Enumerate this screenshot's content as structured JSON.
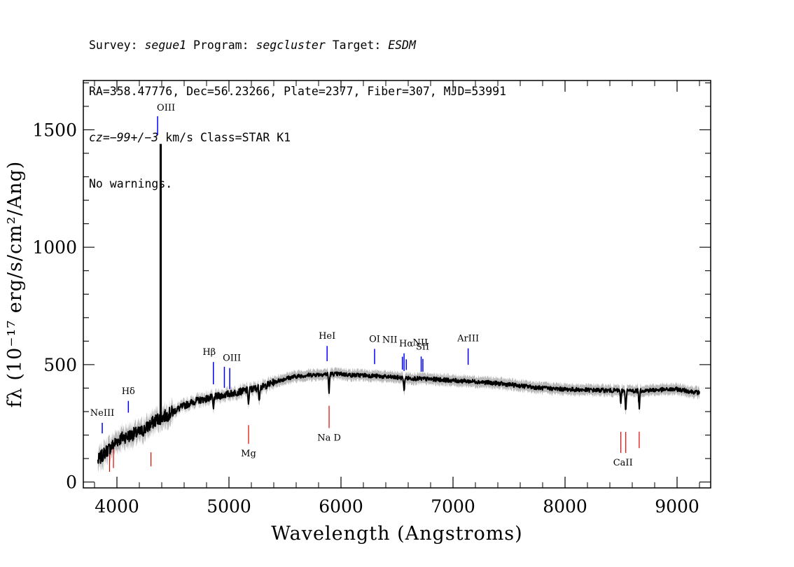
{
  "header": {
    "survey_label": "Survey: ",
    "survey": "segue1",
    "program_label": " Program: ",
    "program": "segcluster",
    "target_label": " Target: ",
    "target": "ESDM",
    "line2": "RA=358.47776, Dec=56.23266, Plate=2377, Fiber=307, MJD=53991",
    "cz_label": "cz",
    "cz_eq": "=",
    "cz_value": "−99+/−3",
    "cz_rest": " km/s Class=STAR K1",
    "line4": "No warnings."
  },
  "chart_data": {
    "type": "line",
    "title": "",
    "xlabel": "Wavelength (Angstroms)",
    "ylabel": "fλ (10⁻¹⁷ erg/s/cm²/Ang)",
    "xlim": [
      3700,
      9300
    ],
    "ylim": [
      -25,
      1710
    ],
    "xticks": [
      4000,
      5000,
      6000,
      7000,
      8000,
      9000
    ],
    "yticks": [
      0,
      500,
      1000,
      1500
    ],
    "xtick_labels": [
      "4000",
      "5000",
      "6000",
      "7000",
      "8000",
      "9000"
    ],
    "ytick_labels": [
      "0",
      "500",
      "1000",
      "1500"
    ],
    "spectrum_knots": {
      "x": [
        3830,
        3900,
        3950,
        4000,
        4050,
        4100,
        4150,
        4200,
        4250,
        4300,
        4350,
        4400,
        4450,
        4500,
        4600,
        4700,
        4800,
        4900,
        5000,
        5100,
        5200,
        5300,
        5400,
        5500,
        5600,
        5700,
        5800,
        5900,
        6000,
        6100,
        6200,
        6300,
        6400,
        6500,
        6600,
        6700,
        6800,
        6900,
        7000,
        7200,
        7400,
        7600,
        7800,
        8000,
        8200,
        8400,
        8600,
        8800,
        9000,
        9200
      ],
      "y": [
        90,
        130,
        150,
        175,
        190,
        195,
        205,
        210,
        225,
        245,
        265,
        275,
        285,
        300,
        325,
        345,
        355,
        365,
        375,
        385,
        395,
        405,
        425,
        440,
        450,
        455,
        458,
        460,
        460,
        455,
        455,
        452,
        448,
        445,
        442,
        440,
        438,
        436,
        432,
        428,
        420,
        410,
        400,
        395,
        392,
        390,
        388,
        392,
        395,
        380
      ]
    },
    "spike": {
      "x": 4385,
      "peak": 1440
    },
    "absorption": [
      {
        "x": 4861,
        "depth": 60
      },
      {
        "x": 5175,
        "depth": 70
      },
      {
        "x": 5270,
        "depth": 50
      },
      {
        "x": 5893,
        "depth": 90
      },
      {
        "x": 6563,
        "depth": 60
      },
      {
        "x": 8498,
        "depth": 60
      },
      {
        "x": 8542,
        "depth": 95
      },
      {
        "x": 8662,
        "depth": 80
      }
    ],
    "emission_lines": [
      {
        "name": "NeIII",
        "x": 3869,
        "label": "NeIII"
      },
      {
        "name": "Hdelta",
        "x": 4102,
        "label": "Hδ"
      },
      {
        "name": "OIII-4363",
        "x": 4363,
        "label": "OIII"
      },
      {
        "name": "Hbeta",
        "x": 4861,
        "label": "Hβ"
      },
      {
        "name": "OIII-4959",
        "x": 4959,
        "label": ""
      },
      {
        "name": "OIII-5007",
        "x": 5007,
        "label": "OIII"
      },
      {
        "name": "HeI",
        "x": 5876,
        "label": "HeI"
      },
      {
        "name": "OI",
        "x": 6300,
        "label": "OI"
      },
      {
        "name": "NII-6548",
        "x": 6548,
        "label": "NII"
      },
      {
        "name": "Halpha",
        "x": 6563,
        "label": "Hα"
      },
      {
        "name": "NII-6583",
        "x": 6583,
        "label": "NII"
      },
      {
        "name": "SII-6716",
        "x": 6716,
        "label": "SII"
      },
      {
        "name": "SII-6731",
        "x": 6731,
        "label": ""
      },
      {
        "name": "ArIII",
        "x": 7135,
        "label": "ArIII"
      }
    ],
    "absorption_lines": [
      {
        "name": "K",
        "x": 3934,
        "label": ""
      },
      {
        "name": "H",
        "x": 3969,
        "label": ""
      },
      {
        "name": "G-band",
        "x": 4304,
        "label": ""
      },
      {
        "name": "Mg",
        "x": 5175,
        "label": "Mg"
      },
      {
        "name": "NaD",
        "x": 5894,
        "label": "Na D"
      },
      {
        "name": "CaII-8498",
        "x": 8498,
        "label": ""
      },
      {
        "name": "CaII-8542",
        "x": 8542,
        "label": "CaII"
      },
      {
        "name": "CaII-8662",
        "x": 8662,
        "label": ""
      }
    ],
    "colors": {
      "spectrum": "#000000",
      "error": "#b8b8b8",
      "emission": "#0000ff",
      "absorption": "#e00000"
    }
  }
}
